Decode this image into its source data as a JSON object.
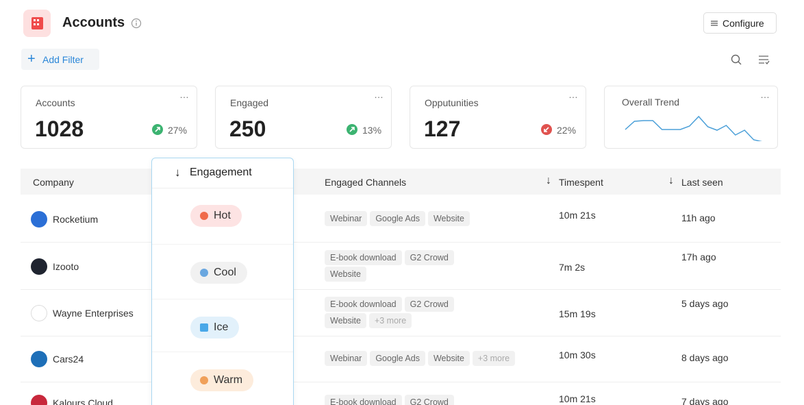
{
  "header": {
    "title": "Accounts",
    "configure": "Configure",
    "add_filter": "Add Filter"
  },
  "stats": [
    {
      "label": "Accounts",
      "value": 1028,
      "change": "27%",
      "color": "#3cb371"
    },
    {
      "label": "Engaged",
      "value": 250,
      "change": "13%",
      "color": "#3cb371"
    },
    {
      "label": "Opputunities",
      "value": 127,
      "change": "22%",
      "color": "#e0524f"
    }
  ],
  "trend": {
    "label": "Overall Trend",
    "color": "#4a9fd8",
    "values": [
      21,
      33,
      34,
      34,
      21,
      21,
      21,
      26,
      40,
      25,
      20,
      27,
      13,
      20,
      6,
      3
    ]
  },
  "table": {
    "columns": [
      "Company",
      "Engaged Channels",
      "Timespent",
      "Last seen"
    ],
    "rows": [
      {
        "company": "Rocketium",
        "logo": "#2b6fd6",
        "channels": [
          [
            "Webinar",
            "Google Ads",
            "Website"
          ]
        ],
        "more": null,
        "timespent": "10m 21s",
        "last_seen": "11h ago"
      },
      {
        "company": "Izooto",
        "logo": "#1f2430",
        "channels": [
          [
            "E-book download",
            "G2 Crowd"
          ],
          [
            "Website"
          ]
        ],
        "more": null,
        "timespent": "7m 2s",
        "last_seen": "17h ago"
      },
      {
        "company": "Wayne Enterprises",
        "logo": "#ffffff",
        "channels": [
          [
            "E-book download",
            "G2 Crowd"
          ],
          [
            "Website"
          ]
        ],
        "more": "+3 more",
        "timespent": "15m 19s",
        "last_seen": "5 days ago"
      },
      {
        "company": "Cars24",
        "logo": "#1e6fb8",
        "channels": [
          [
            "Webinar",
            "Google Ads",
            "Website"
          ]
        ],
        "more": "+3 more",
        "timespent": "10m 30s",
        "last_seen": "8 days ago"
      },
      {
        "company": "Kalours Cloud",
        "logo": "#c8283c",
        "channels": [
          [
            "E-book download",
            "G2 Crowd"
          ]
        ],
        "more": null,
        "timespent": "10m 21s",
        "last_seen": "7 days ago"
      }
    ]
  },
  "dropdown": {
    "title": "Engagement",
    "options": [
      {
        "label": "Hot",
        "bg": "#fde3e3",
        "icon": "#f06a4a"
      },
      {
        "label": "Cool",
        "bg": "#f1f1f1",
        "icon": "#6aa7e0"
      },
      {
        "label": "Ice",
        "bg": "#e2f1fb",
        "icon": "#4aa8e8"
      },
      {
        "label": "Warm",
        "bg": "#fdecdc",
        "icon": "#f0a05a"
      }
    ]
  }
}
